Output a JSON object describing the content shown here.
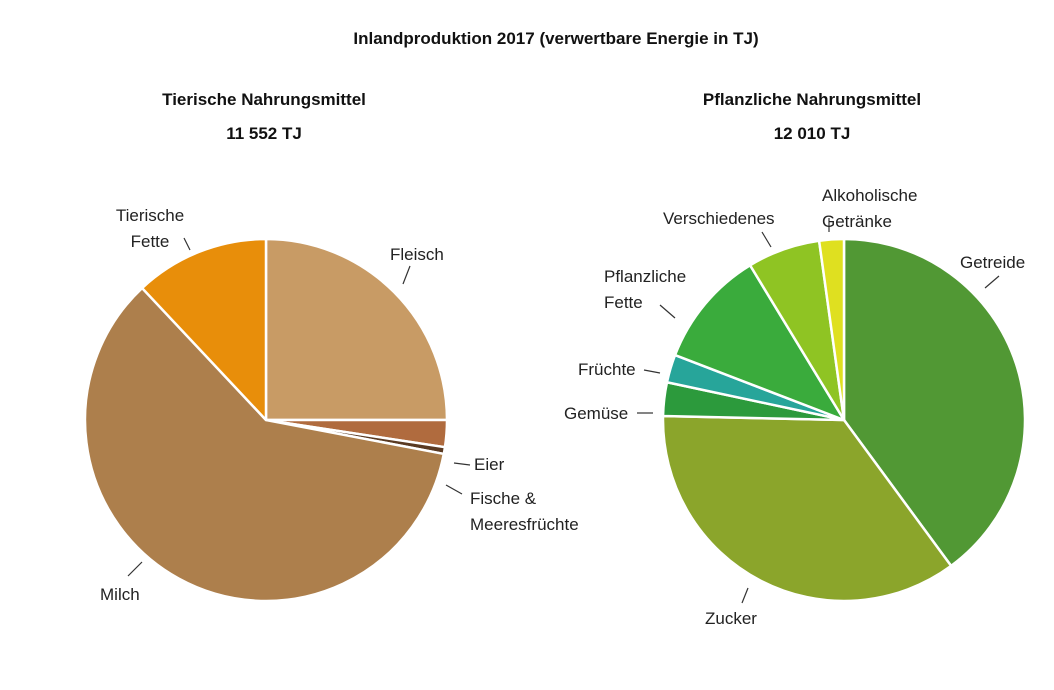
{
  "title": "Inlandproduktion 2017 (verwertbare Energie in  TJ)",
  "chart_data": [
    {
      "type": "pie",
      "title": "Tierische Nahrungsmittel",
      "total": "11 552 TJ",
      "slices": [
        {
          "label": [
            "Fleisch"
          ],
          "value": 25.0,
          "color": "#c89b65"
        },
        {
          "label": [
            "Eier"
          ],
          "value": 2.4,
          "color": "#b06b3e"
        },
        {
          "label": [
            "Fische &",
            "Meeresfrüchte"
          ],
          "value": 0.6,
          "color": "#5a3a22"
        },
        {
          "label": [
            "Milch"
          ],
          "value": 60.0,
          "color": "#ad7f4c"
        },
        {
          "label": [
            "Tierische",
            "Fette"
          ],
          "value": 12.0,
          "color": "#e88e0a"
        }
      ]
    },
    {
      "type": "pie",
      "title": "Pflanzliche Nahrungsmittel",
      "total": "12 010 TJ",
      "slices": [
        {
          "label": [
            "Getreide"
          ],
          "value": 40.0,
          "color": "#519834"
        },
        {
          "label": [
            "Zucker"
          ],
          "value": 35.5,
          "color": "#8ba52b"
        },
        {
          "label": [
            "Gemüse"
          ],
          "value": 3.0,
          "color": "#2c9a3c"
        },
        {
          "label": [
            "Früchte"
          ],
          "value": 2.5,
          "color": "#27a59a"
        },
        {
          "label": [
            "Pflanzliche",
            "Fette"
          ],
          "value": 10.5,
          "color": "#3aab3c"
        },
        {
          "label": [
            "Verschiedenes"
          ],
          "value": 6.5,
          "color": "#8fc423"
        },
        {
          "label": [
            "Alkoholische",
            "Getränke"
          ],
          "value": 2.2,
          "color": "#dfe020"
        }
      ]
    }
  ]
}
